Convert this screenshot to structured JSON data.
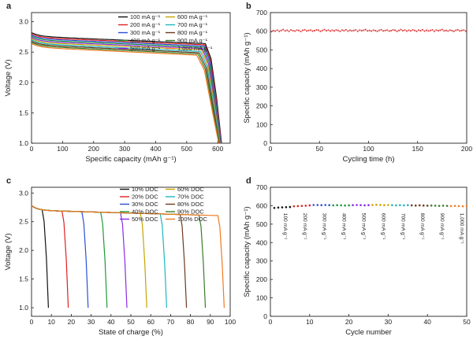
{
  "figure": {
    "panels": [
      "a",
      "b",
      "c",
      "d"
    ]
  },
  "chart_data": [
    {
      "panel": "a",
      "type": "line",
      "title": "",
      "xlabel": "Specific capacity (mAh g⁻¹)",
      "ylabel": "Voltage (V)",
      "xlim": [
        0,
        640
      ],
      "ylim": [
        1.0,
        3.15
      ],
      "xticks": [
        0,
        100,
        200,
        300,
        400,
        500,
        600
      ],
      "yticks": [
        1.0,
        1.5,
        2.0,
        2.5,
        3.0
      ],
      "legend": {
        "position": "top-right",
        "columns": 2
      },
      "series": [
        {
          "name": "100 mA g⁻¹",
          "color": "#111111",
          "start_v": 2.82,
          "plateau_end_v": 2.64,
          "knee_x": 560,
          "end_x": 612
        },
        {
          "name": "200 mA g⁻¹",
          "color": "#e02020",
          "start_v": 2.8,
          "plateau_end_v": 2.62,
          "knee_x": 558,
          "end_x": 611
        },
        {
          "name": "300 mA g⁻¹",
          "color": "#2a4fd8",
          "start_v": 2.78,
          "plateau_end_v": 2.6,
          "knee_x": 556,
          "end_x": 610
        },
        {
          "name": "400 mA g⁻¹",
          "color": "#1f9a3a",
          "start_v": 2.76,
          "plateau_end_v": 2.58,
          "knee_x": 553,
          "end_x": 609
        },
        {
          "name": "500 mA g⁻¹",
          "color": "#8a2be2",
          "start_v": 2.74,
          "plateau_end_v": 2.56,
          "knee_x": 550,
          "end_x": 608
        },
        {
          "name": "600 mA g⁻¹",
          "color": "#c8a400",
          "start_v": 2.72,
          "plateau_end_v": 2.54,
          "knee_x": 547,
          "end_x": 607
        },
        {
          "name": "700 mA g⁻¹",
          "color": "#1fb5c0",
          "start_v": 2.7,
          "plateau_end_v": 2.51,
          "knee_x": 544,
          "end_x": 606
        },
        {
          "name": "800 mA g⁻¹",
          "color": "#6b3a1f",
          "start_v": 2.68,
          "plateau_end_v": 2.49,
          "knee_x": 540,
          "end_x": 605
        },
        {
          "name": "900 mA g⁻¹",
          "color": "#3a7d2a",
          "start_v": 2.66,
          "plateau_end_v": 2.47,
          "knee_x": 536,
          "end_x": 604
        },
        {
          "name": "1,000 mA g⁻¹",
          "color": "#f07a20",
          "start_v": 2.64,
          "plateau_end_v": 2.45,
          "knee_x": 532,
          "end_x": 603
        }
      ]
    },
    {
      "panel": "b",
      "type": "scatter",
      "title": "",
      "xlabel": "Cycling time (h)",
      "ylabel": "Specific capacity (mAh g⁻¹)",
      "xlim": [
        0,
        200
      ],
      "ylim": [
        0,
        700
      ],
      "xticks": [
        0,
        50,
        100,
        150,
        200
      ],
      "yticks": [
        0,
        100,
        200,
        300,
        400,
        500,
        600,
        700
      ],
      "marker_color": "#e04848",
      "x_start": 1,
      "x_end": 199,
      "x_step": 2,
      "values": [
        598,
        603,
        601,
        606,
        600,
        604,
        609,
        602,
        605,
        600,
        607,
        603,
        601,
        606,
        604,
        599,
        605,
        608,
        602,
        604,
        606,
        601,
        603,
        607,
        605,
        600,
        604,
        609,
        603,
        606,
        601,
        605,
        602,
        607,
        604,
        600,
        606,
        603,
        608,
        601,
        605,
        602,
        604,
        607,
        600,
        606,
        603,
        605,
        609,
        602,
        604,
        601,
        606,
        603,
        600,
        605,
        608,
        602,
        604,
        606,
        601,
        603,
        607,
        605,
        600,
        604,
        609,
        603,
        606,
        601,
        605,
        602,
        607,
        604,
        600,
        606,
        603,
        608,
        601,
        605,
        602,
        604,
        607,
        600,
        606,
        603,
        605,
        609,
        602,
        604,
        601,
        606,
        603,
        600,
        605,
        608,
        602,
        604,
        606,
        601
      ]
    },
    {
      "panel": "c",
      "type": "line",
      "title": "",
      "xlabel": "State of charge (%)",
      "ylabel": "Voltage (V)",
      "xlim": [
        0,
        100
      ],
      "ylim": [
        0.85,
        3.1
      ],
      "xticks": [
        0,
        10,
        20,
        30,
        40,
        50,
        60,
        70,
        80,
        90,
        100
      ],
      "yticks": [
        1.0,
        1.5,
        2.0,
        2.5,
        3.0
      ],
      "legend": {
        "position": "top-right",
        "columns": 2
      },
      "series": [
        {
          "name": "10% DOC",
          "color": "#111111",
          "doc": 10,
          "end_x": 8.5
        },
        {
          "name": "20% DOC",
          "color": "#e02020",
          "doc": 20,
          "end_x": 18.5
        },
        {
          "name": "30% DOC",
          "color": "#2a4fd8",
          "doc": 30,
          "end_x": 28.5
        },
        {
          "name": "40% DOC",
          "color": "#1f9a3a",
          "doc": 40,
          "end_x": 38
        },
        {
          "name": "50% DOC",
          "color": "#8a2be2",
          "doc": 50,
          "end_x": 48
        },
        {
          "name": "60% DOC",
          "color": "#c8a400",
          "doc": 60,
          "end_x": 58
        },
        {
          "name": "70% DOC",
          "color": "#1fb5c0",
          "doc": 70,
          "end_x": 68
        },
        {
          "name": "80% DOC",
          "color": "#6b3a1f",
          "doc": 80,
          "end_x": 78
        },
        {
          "name": "90% DOC",
          "color": "#3a7d2a",
          "doc": 90,
          "end_x": 87.5
        },
        {
          "name": "100% DOC",
          "color": "#f07a20",
          "doc": 100,
          "end_x": 97
        }
      ]
    },
    {
      "panel": "d",
      "type": "scatter",
      "title": "",
      "xlabel": "Cycle number",
      "ylabel": "Specific capacity (mAh g⁻¹)",
      "xlim": [
        0,
        50
      ],
      "ylim": [
        0,
        700
      ],
      "xticks": [
        0,
        10,
        20,
        30,
        40,
        50
      ],
      "yticks": [
        0,
        100,
        200,
        300,
        400,
        500,
        600,
        700
      ],
      "colors": [
        "#111111",
        "#e02020",
        "#2a4fd8",
        "#1f9a3a",
        "#8a2be2",
        "#c8a400",
        "#1fb5c0",
        "#6b3a1f",
        "#3a7d2a",
        "#f07a20"
      ],
      "values": [
        588,
        590,
        591,
        592,
        593,
        597,
        598,
        599,
        600,
        602,
        604,
        604,
        603,
        604,
        603,
        602,
        603,
        602,
        601,
        602,
        603,
        604,
        603,
        602,
        603,
        604,
        605,
        604,
        603,
        604,
        603,
        602,
        603,
        602,
        603,
        602,
        601,
        602,
        601,
        600,
        601,
        600,
        599,
        600,
        599,
        598,
        599,
        598,
        597,
        598
      ],
      "annotations": [
        "100 mA g⁻¹",
        "200 mA g⁻¹",
        "300 mA g⁻¹",
        "400 mA g⁻¹",
        "500 mA g⁻¹",
        "600 mA g⁻¹",
        "700 mA g⁻¹",
        "800 mA g⁻¹",
        "900 mA g⁻¹",
        "1,000 mA g⁻¹"
      ]
    }
  ]
}
